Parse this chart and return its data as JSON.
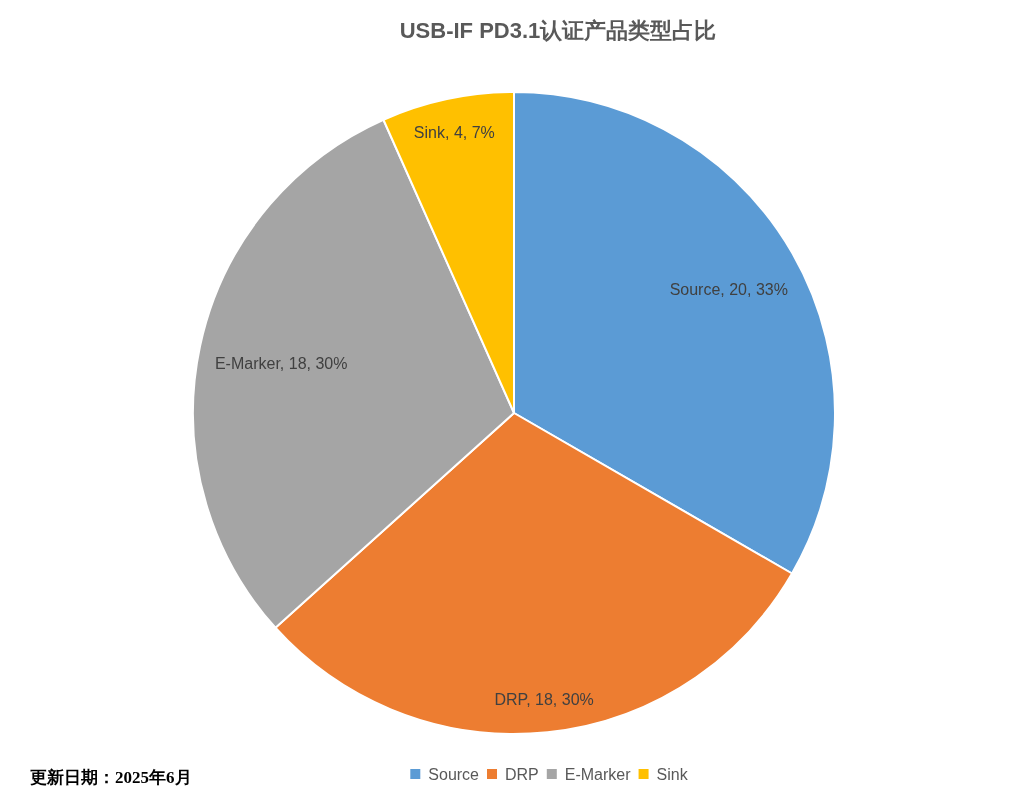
{
  "chart_data": {
    "type": "pie",
    "title": "USB-IF PD3.1认证产品类型占比",
    "categories": [
      "Source",
      "DRP",
      "E-Marker",
      "Sink"
    ],
    "values": [
      20,
      18,
      18,
      4
    ],
    "colors": [
      "#5b9bd5",
      "#ed7d31",
      "#a5a5a5",
      "#ffc000"
    ],
    "value_labels": [
      "Source, 20, 33%",
      "DRP, 18, 30%",
      "E-Marker, 18, 30%",
      "Sink, 4, 7%"
    ],
    "legend": "bottom",
    "annotations": [
      "更新日期：2025年6月"
    ]
  }
}
